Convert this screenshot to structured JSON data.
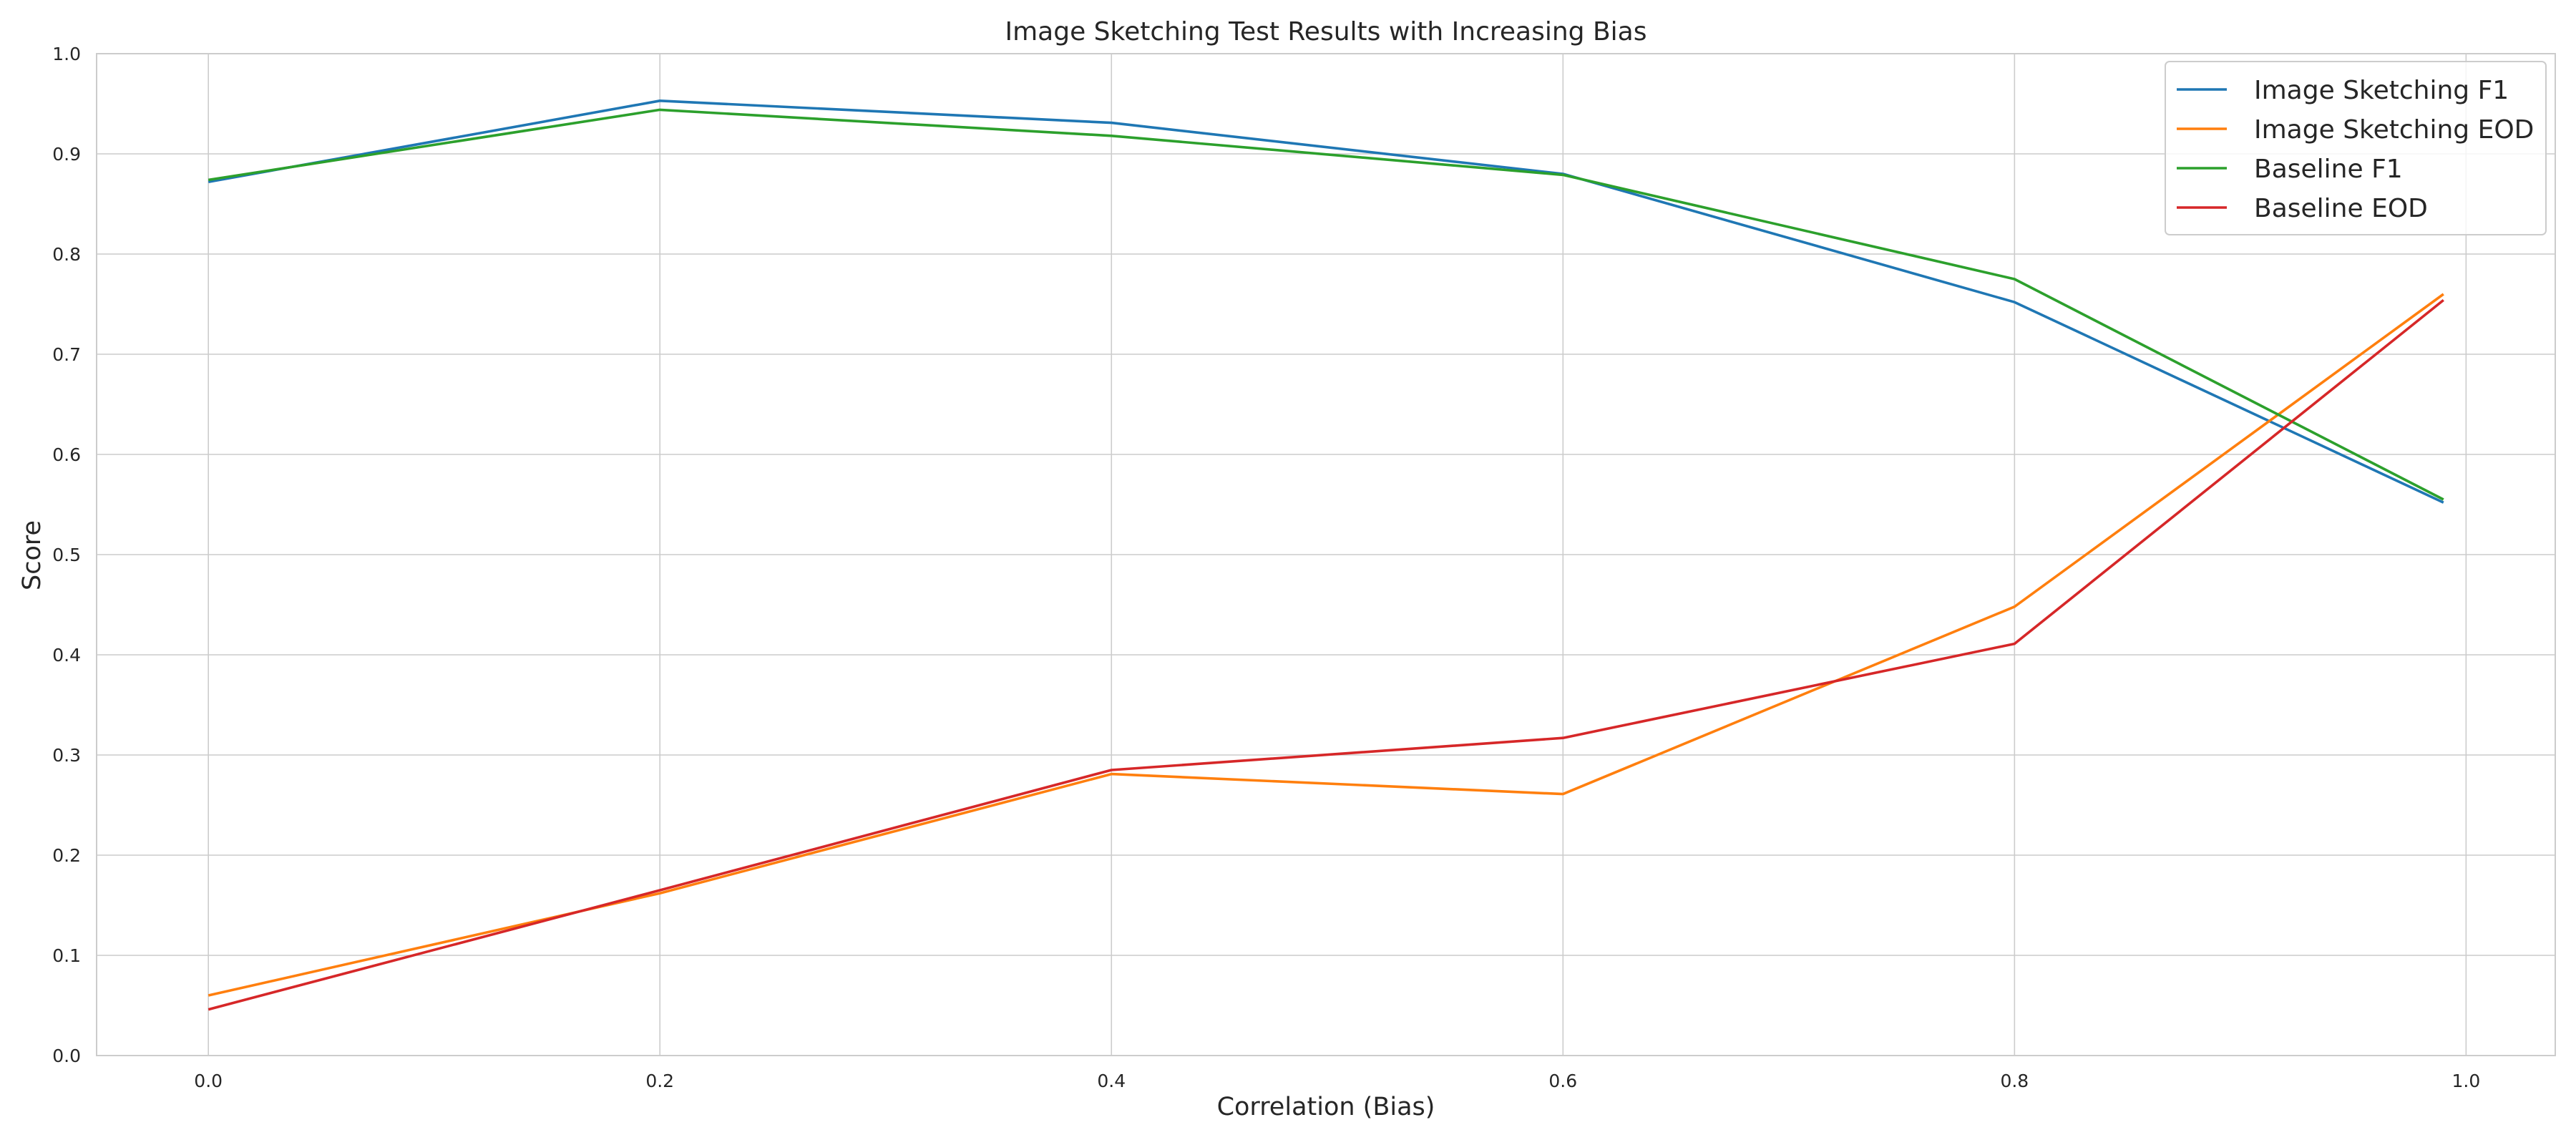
{
  "chart_data": {
    "type": "line",
    "title": "Image Sketching Test Results with Increasing Bias",
    "xlabel": "Correlation (Bias)",
    "ylabel": "Score",
    "xlim": [
      -0.0495,
      1.0395
    ],
    "ylim": [
      0.0,
      1.0
    ],
    "x": [
      0.0,
      0.2,
      0.4,
      0.6,
      0.8,
      0.99
    ],
    "xticks": [
      0.0,
      0.2,
      0.4,
      0.6,
      0.8,
      1.0
    ],
    "xtick_labels": [
      "0.0",
      "0.2",
      "0.4",
      "0.6",
      "0.8",
      "1.0"
    ],
    "yticks": [
      0.0,
      0.1,
      0.2,
      0.3,
      0.4,
      0.5,
      0.6,
      0.7,
      0.8,
      0.9,
      1.0
    ],
    "ytick_labels": [
      "0.0",
      "0.1",
      "0.2",
      "0.3",
      "0.4",
      "0.5",
      "0.6",
      "0.7",
      "0.8",
      "0.9",
      "1.0"
    ],
    "grid": true,
    "legend_position": "top-right",
    "series": [
      {
        "name": "Image Sketching F1",
        "color": "#1f77b4",
        "values": [
          0.872,
          0.953,
          0.931,
          0.88,
          0.752,
          0.552
        ]
      },
      {
        "name": "Image Sketching EOD",
        "color": "#ff7f0e",
        "values": [
          0.06,
          0.162,
          0.281,
          0.261,
          0.448,
          0.76
        ]
      },
      {
        "name": "Baseline F1",
        "color": "#2ca02c",
        "values": [
          0.874,
          0.944,
          0.918,
          0.879,
          0.775,
          0.555
        ]
      },
      {
        "name": "Baseline EOD",
        "color": "#d62728",
        "values": [
          0.046,
          0.165,
          0.285,
          0.317,
          0.411,
          0.754
        ]
      }
    ]
  }
}
